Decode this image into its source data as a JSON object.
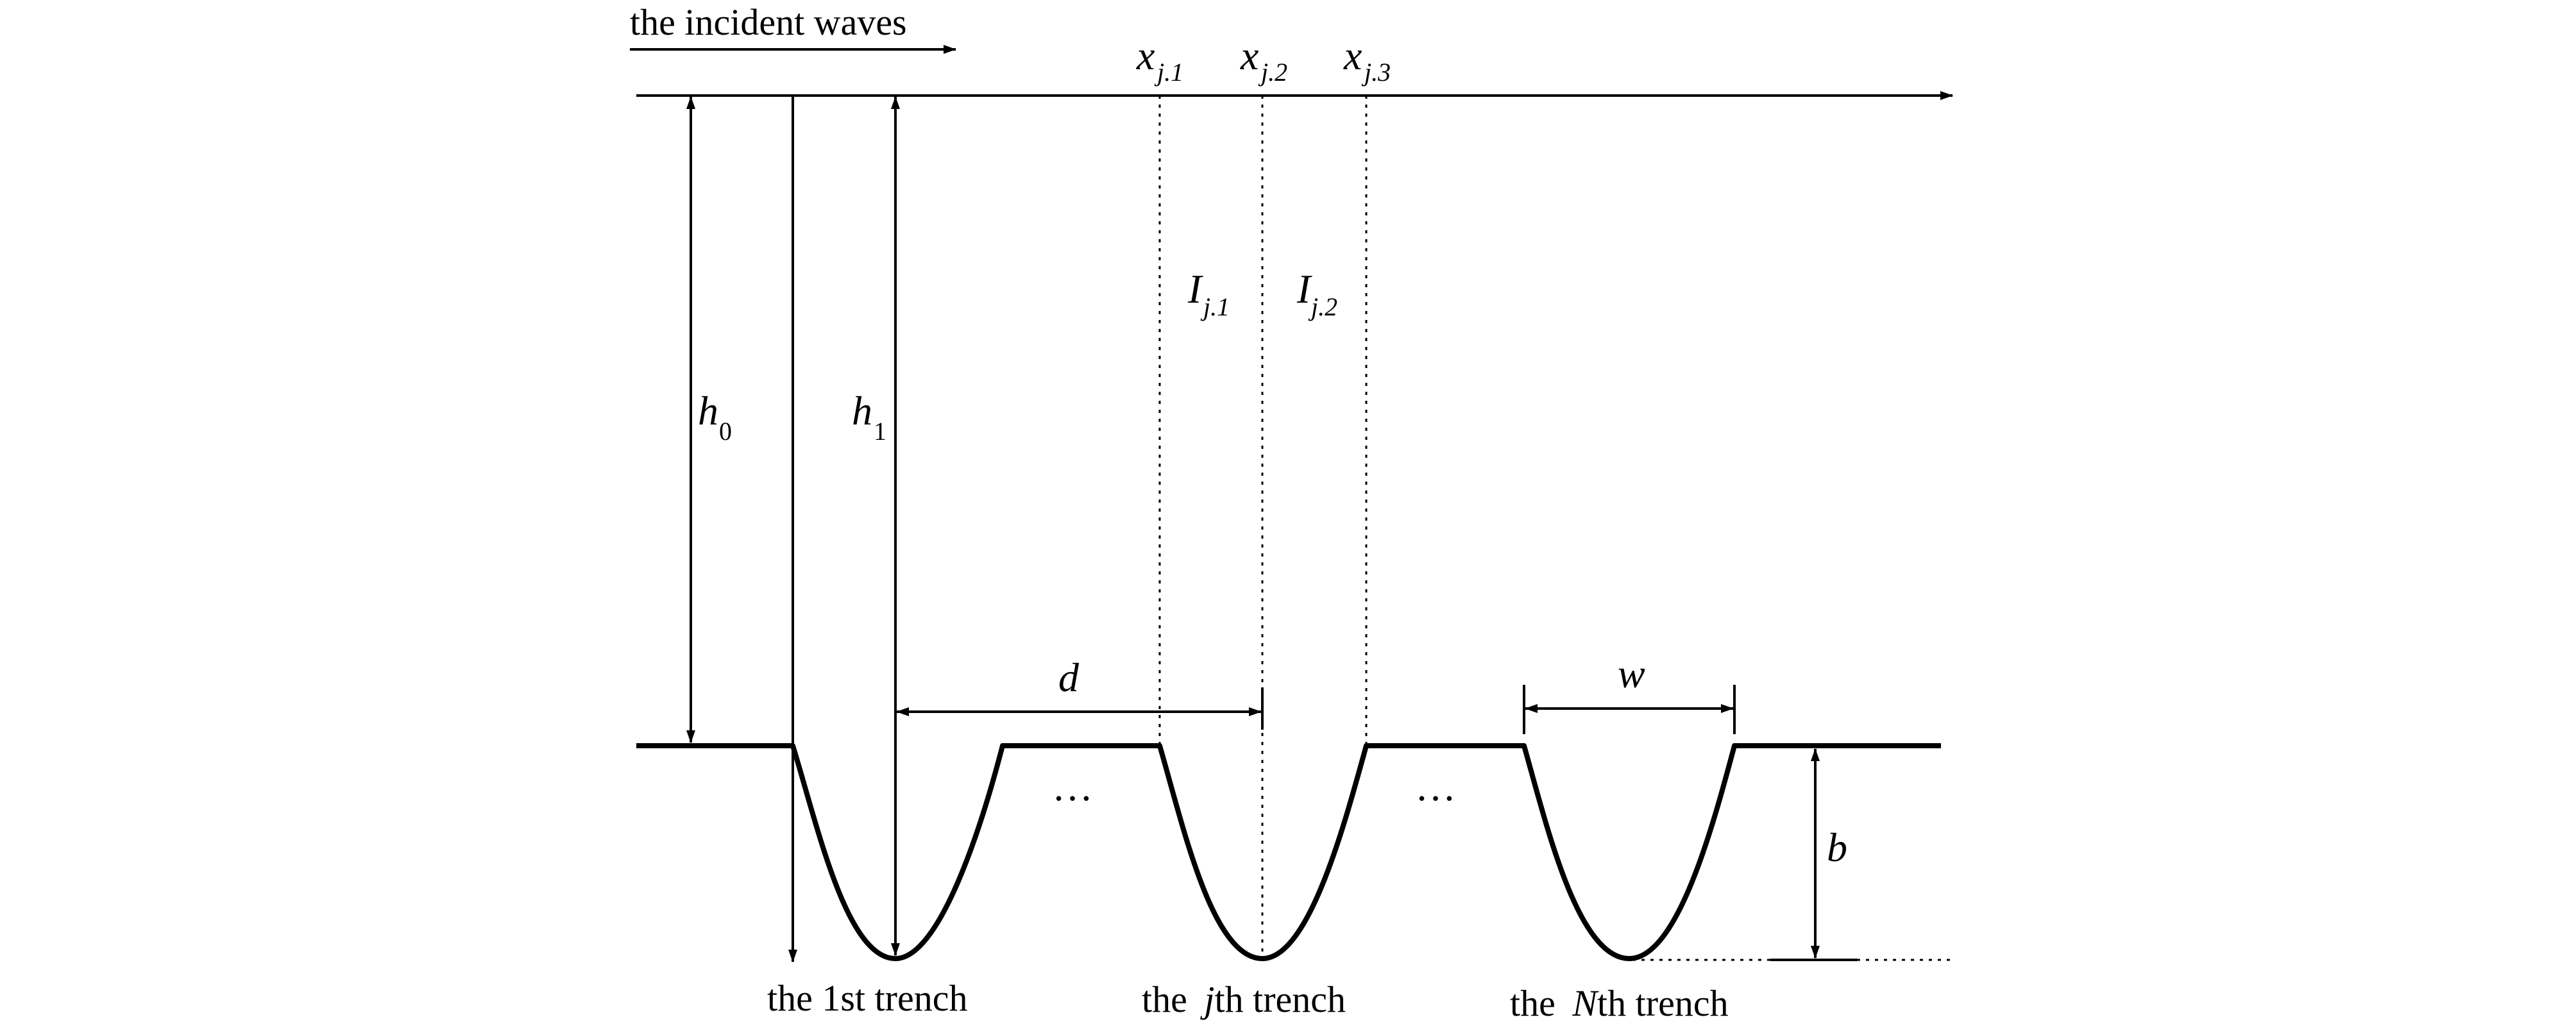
{
  "diagram": {
    "incident_label": "the incident waves",
    "x_labels": [
      {
        "base": "x",
        "sub": "j.1"
      },
      {
        "base": "x",
        "sub": "j.2"
      },
      {
        "base": "x",
        "sub": "j.3"
      }
    ],
    "region_labels": [
      {
        "base": "I",
        "sub": "j.1"
      },
      {
        "base": "I",
        "sub": "j.2"
      }
    ],
    "h0": {
      "base": "h",
      "sub": "0"
    },
    "h1": {
      "base": "h",
      "sub": "1"
    },
    "d_label": "d",
    "w_label": "w",
    "b_label": "b",
    "ellipsis": [
      "…",
      "…"
    ],
    "trench_labels": {
      "first": "the 1st trench",
      "jth_prefix": "the ",
      "jth_var": "j",
      "jth_suffix": "th trench",
      "nth_prefix": "the ",
      "nth_var": "N",
      "nth_suffix": "th trench"
    }
  }
}
